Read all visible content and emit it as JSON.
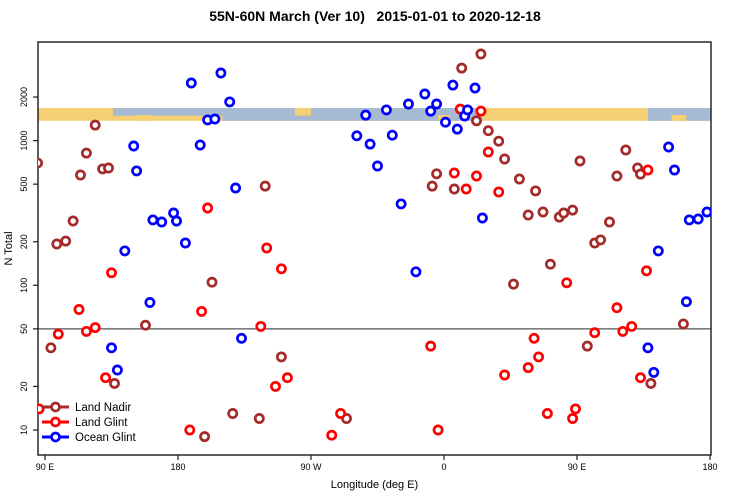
{
  "title": "55N-60N March (Ver 10)   2015-01-01 to 2020-12-18",
  "colors": {
    "land_nadir": "#A52A2A",
    "land_glint": "#FF0000",
    "ocean_glint": "#0000FF",
    "band_land": "#F6CF74",
    "band_ocean": "#A7BAD3",
    "reference_line": "#555555",
    "frame": "#1a1a1a"
  },
  "legend": {
    "items": [
      "Land Nadir",
      "Land Glint",
      "Ocean Glint"
    ]
  },
  "chart_data": {
    "type": "scatter",
    "title": "55N-60N March (Ver 10)   2015-01-01 to 2020-12-18",
    "xlabel": "Longitude (deg E)",
    "ylabel": "N Total",
    "x_axis": {
      "min": 90,
      "max": 540,
      "ticks": [
        {
          "value": 90,
          "label": "90 E"
        },
        {
          "value": 180,
          "label": "180"
        },
        {
          "value": 270,
          "label": "90 W"
        },
        {
          "value": 360,
          "label": "0"
        },
        {
          "value": 450,
          "label": "90 E"
        },
        {
          "value": 540,
          "label": "180"
        }
      ]
    },
    "y_axis": {
      "scale": "log",
      "min": 6.7,
      "max": 4800,
      "ticks": [
        10,
        20,
        50,
        100,
        200,
        500,
        1000,
        2000
      ]
    },
    "reference_line": {
      "value": 50
    },
    "map_band": {
      "value_top": 1680,
      "value_bottom": 1370,
      "base": "land",
      "ocean_segments": [
        {
          "from_lon": 136,
          "to_lon": 210,
          "coverage": "top"
        },
        {
          "from_lon": 210,
          "to_lon": 386,
          "coverage": "full"
        },
        {
          "from_lon": 498,
          "to_lon": 541,
          "coverage": "full"
        }
      ],
      "land_islands": [
        {
          "from_lon": 153,
          "to_lon": 161,
          "coverage": "bottom"
        },
        {
          "from_lon": 259,
          "to_lon": 270,
          "coverage": "top"
        },
        {
          "from_lon": 356,
          "to_lon": 364,
          "coverage": "bottom"
        },
        {
          "from_lon": 514,
          "to_lon": 524,
          "coverage": "bottom"
        }
      ]
    },
    "series": [
      {
        "name": "Land Nadir",
        "color_key": "land_nadir",
        "points": [
          [
            124,
            1280
          ],
          [
            118,
            820
          ],
          [
            85,
            700
          ],
          [
            129,
            637
          ],
          [
            133,
            647
          ],
          [
            114,
            578
          ],
          [
            109,
            278
          ],
          [
            98,
            193
          ],
          [
            104,
            202
          ],
          [
            239,
            485
          ],
          [
            203,
            105
          ],
          [
            158,
            53
          ],
          [
            94,
            37
          ],
          [
            137,
            21
          ],
          [
            217,
            13
          ],
          [
            198,
            9
          ],
          [
            294,
            12
          ],
          [
            235,
            12
          ],
          [
            250,
            32
          ],
          [
            355,
            590
          ],
          [
            352,
            485
          ],
          [
            367,
            463
          ],
          [
            372,
            3170
          ],
          [
            385,
            3970
          ],
          [
            382,
            1370
          ],
          [
            390,
            1170
          ],
          [
            397,
            990
          ],
          [
            401,
            746
          ],
          [
            407,
            102
          ],
          [
            411,
            543
          ],
          [
            422,
            449
          ],
          [
            417,
            306
          ],
          [
            427,
            321
          ],
          [
            432,
            140
          ],
          [
            438,
            296
          ],
          [
            441,
            316
          ],
          [
            447,
            331
          ],
          [
            452,
            723
          ],
          [
            457,
            38
          ],
          [
            462,
            196
          ],
          [
            466,
            206
          ],
          [
            472,
            274
          ],
          [
            477,
            569
          ],
          [
            483,
            861
          ],
          [
            491,
            647
          ],
          [
            493,
            587
          ],
          [
            500,
            21
          ],
          [
            522,
            54
          ]
        ]
      },
      {
        "name": "Land Glint",
        "color_key": "land_glint",
        "points": [
          [
            86,
            14
          ],
          [
            135,
            122
          ],
          [
            113,
            68
          ],
          [
            99,
            46
          ],
          [
            118,
            48
          ],
          [
            124,
            51
          ],
          [
            131,
            23
          ],
          [
            196,
            66
          ],
          [
            188,
            10
          ],
          [
            200,
            342
          ],
          [
            236,
            52
          ],
          [
            240,
            181
          ],
          [
            250,
            130
          ],
          [
            254,
            23
          ],
          [
            246,
            20
          ],
          [
            290,
            13
          ],
          [
            284,
            9.2
          ],
          [
            351,
            38
          ],
          [
            356,
            10
          ],
          [
            367,
            597
          ],
          [
            371,
            1650
          ],
          [
            382,
            569
          ],
          [
            375,
            463
          ],
          [
            385,
            1600
          ],
          [
            390,
            834
          ],
          [
            397,
            441
          ],
          [
            401,
            24
          ],
          [
            417,
            27
          ],
          [
            421,
            43
          ],
          [
            424,
            32
          ],
          [
            430,
            13
          ],
          [
            443,
            104
          ],
          [
            447,
            12
          ],
          [
            449,
            14
          ],
          [
            462,
            47
          ],
          [
            477,
            70
          ],
          [
            481,
            48
          ],
          [
            487,
            52
          ],
          [
            497,
            126
          ],
          [
            498,
            626
          ],
          [
            493,
            23
          ]
        ]
      },
      {
        "name": "Ocean Glint",
        "color_key": "ocean_glint",
        "points": [
          [
            189,
            2500
          ],
          [
            209,
            2930
          ],
          [
            215,
            1850
          ],
          [
            200,
            1390
          ],
          [
            205,
            1410
          ],
          [
            150,
            918
          ],
          [
            195,
            933
          ],
          [
            152,
            617
          ],
          [
            163,
            283
          ],
          [
            169,
            274
          ],
          [
            177,
            316
          ],
          [
            179,
            278
          ],
          [
            185,
            196
          ],
          [
            219,
            470
          ],
          [
            144,
            173
          ],
          [
            135,
            37
          ],
          [
            139,
            26
          ],
          [
            161,
            76
          ],
          [
            223,
            43
          ],
          [
            307,
            1500
          ],
          [
            321,
            1630
          ],
          [
            301,
            1080
          ],
          [
            310,
            946
          ],
          [
            325,
            1090
          ],
          [
            315,
            667
          ],
          [
            331,
            365
          ],
          [
            341,
            124
          ],
          [
            336,
            1790
          ],
          [
            347,
            2100
          ],
          [
            351,
            1600
          ],
          [
            355,
            1790
          ],
          [
            361,
            1340
          ],
          [
            366,
            2420
          ],
          [
            369,
            1200
          ],
          [
            374,
            1480
          ],
          [
            376,
            1630
          ],
          [
            381,
            2310
          ],
          [
            386,
            292
          ],
          [
            498,
            37
          ],
          [
            502,
            25
          ],
          [
            505,
            173
          ],
          [
            512,
            903
          ],
          [
            516,
            626
          ],
          [
            524,
            77
          ],
          [
            526,
            283
          ],
          [
            532,
            287
          ],
          [
            538,
            321
          ]
        ]
      }
    ]
  }
}
